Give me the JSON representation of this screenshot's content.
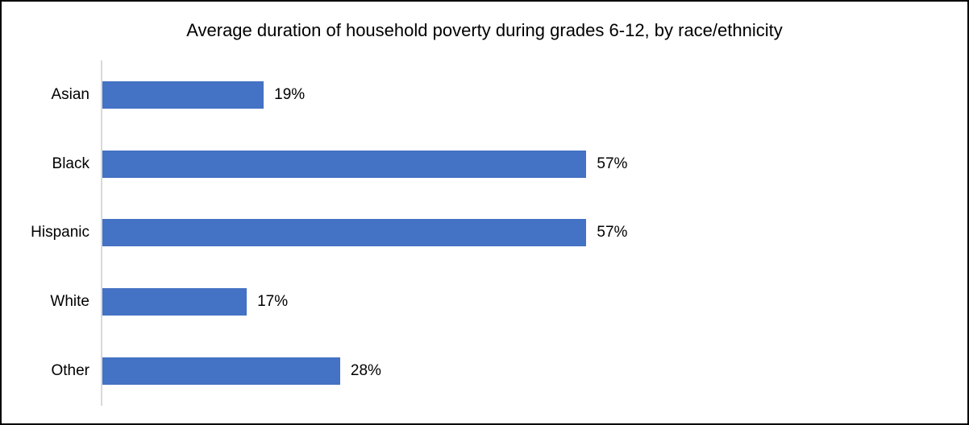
{
  "chart_data": {
    "type": "bar",
    "orientation": "horizontal",
    "title": "Average duration of household poverty during grades 6-12, by race/ethnicity",
    "categories": [
      "Asian",
      "Black",
      "Hispanic",
      "White",
      "Other"
    ],
    "values": [
      19,
      57,
      57,
      17,
      28
    ],
    "value_labels": [
      "19%",
      "57%",
      "57%",
      "17%",
      "28%"
    ],
    "xlabel": "",
    "ylabel": "",
    "xlim": [
      0,
      60
    ],
    "grid": false,
    "legend": false,
    "data_labels_position": "outside-end",
    "bar_color": "#4472C4",
    "axis_line_color": "#D9D9D9",
    "text_color": "#000000",
    "frame_border_color": "#000000",
    "background_color": "#FFFFFF"
  }
}
